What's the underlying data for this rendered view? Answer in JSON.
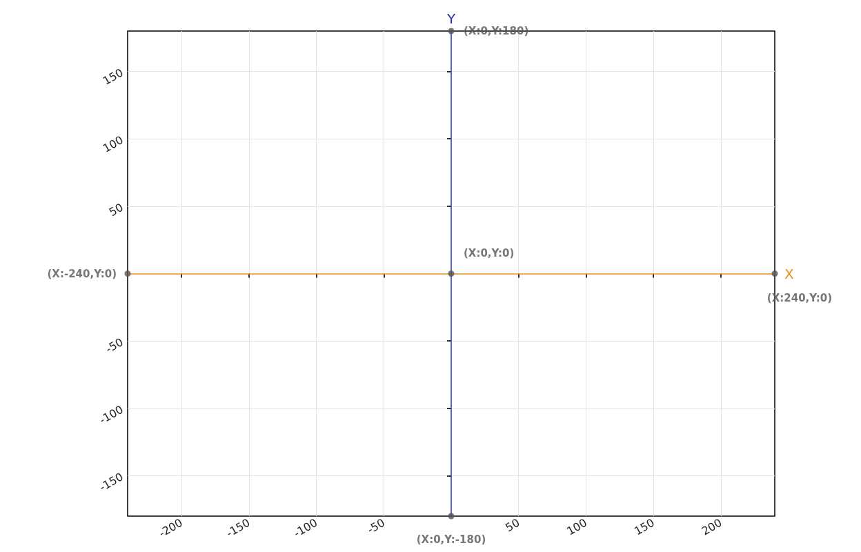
{
  "chart_data": {
    "type": "scatter",
    "xlabel": "X",
    "ylabel": "Y",
    "x": [
      0,
      -240,
      0,
      240,
      0
    ],
    "series": [
      {
        "color": "#555555",
        "values": [
          180,
          0,
          0,
          0,
          -180
        ]
      }
    ],
    "marker": "circle",
    "grid": true,
    "ref_lines": [
      {
        "axis": "x",
        "value": 0,
        "color": "#2630a8"
      },
      {
        "axis": "y",
        "value": 0,
        "color": "#e8921e"
      }
    ],
    "xlim": [
      -240,
      240
    ],
    "xticks": [
      -200,
      -150,
      -100,
      -50,
      50,
      100,
      150,
      200
    ],
    "ylim": [
      -180,
      180
    ],
    "yticks": [
      -150,
      -100,
      -50,
      50,
      100,
      150
    ],
    "annotations": [
      {
        "text": "(X:0,Y:180)",
        "x": 0,
        "y": 180
      },
      {
        "text": "(X:-240,Y:0)",
        "x": -240,
        "y": 0
      },
      {
        "text": "(X:0,Y:0)",
        "x": 0,
        "y": 0
      },
      {
        "text": "(X:240,Y:0)",
        "x": 240,
        "y": 0
      },
      {
        "text": "(X:0,Y:-180)",
        "x": 0,
        "y": -180
      }
    ]
  }
}
